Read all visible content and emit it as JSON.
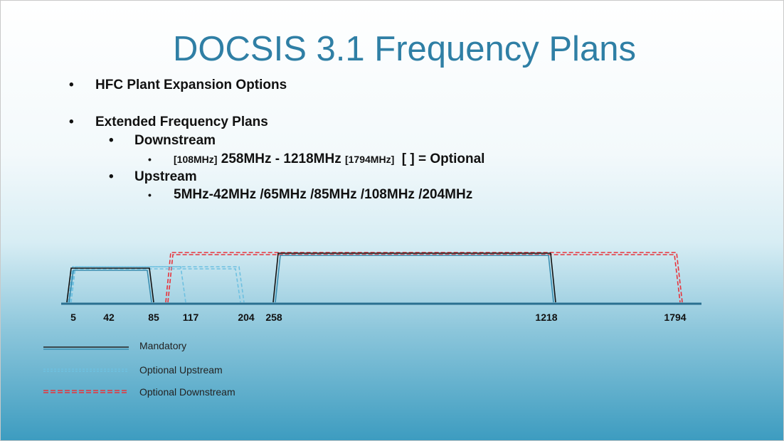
{
  "title": "DOCSIS 3.1 Frequency Plans",
  "bullets": [
    {
      "text": "HFC Plant Expansion Options"
    },
    {
      "text": "Extended Frequency Plans",
      "children": [
        {
          "text": "Downstream",
          "children": [
            {
              "parts": [
                "[108MHz]",
                "258MHz - 1218MHz",
                "[1794MHz]",
                "[ ] = Optional"
              ]
            }
          ]
        },
        {
          "text": "Upstream",
          "children": [
            {
              "parts": [
                "5MHz-42MHz /65MHz /85MHz /108MHz /204MHz"
              ]
            }
          ]
        }
      ]
    }
  ],
  "axis_labels": [
    5,
    42,
    85,
    117,
    204,
    258,
    1218,
    1794
  ],
  "legend": [
    "Mandatory",
    "Optional Upstream",
    "Optional Downstream"
  ]
}
